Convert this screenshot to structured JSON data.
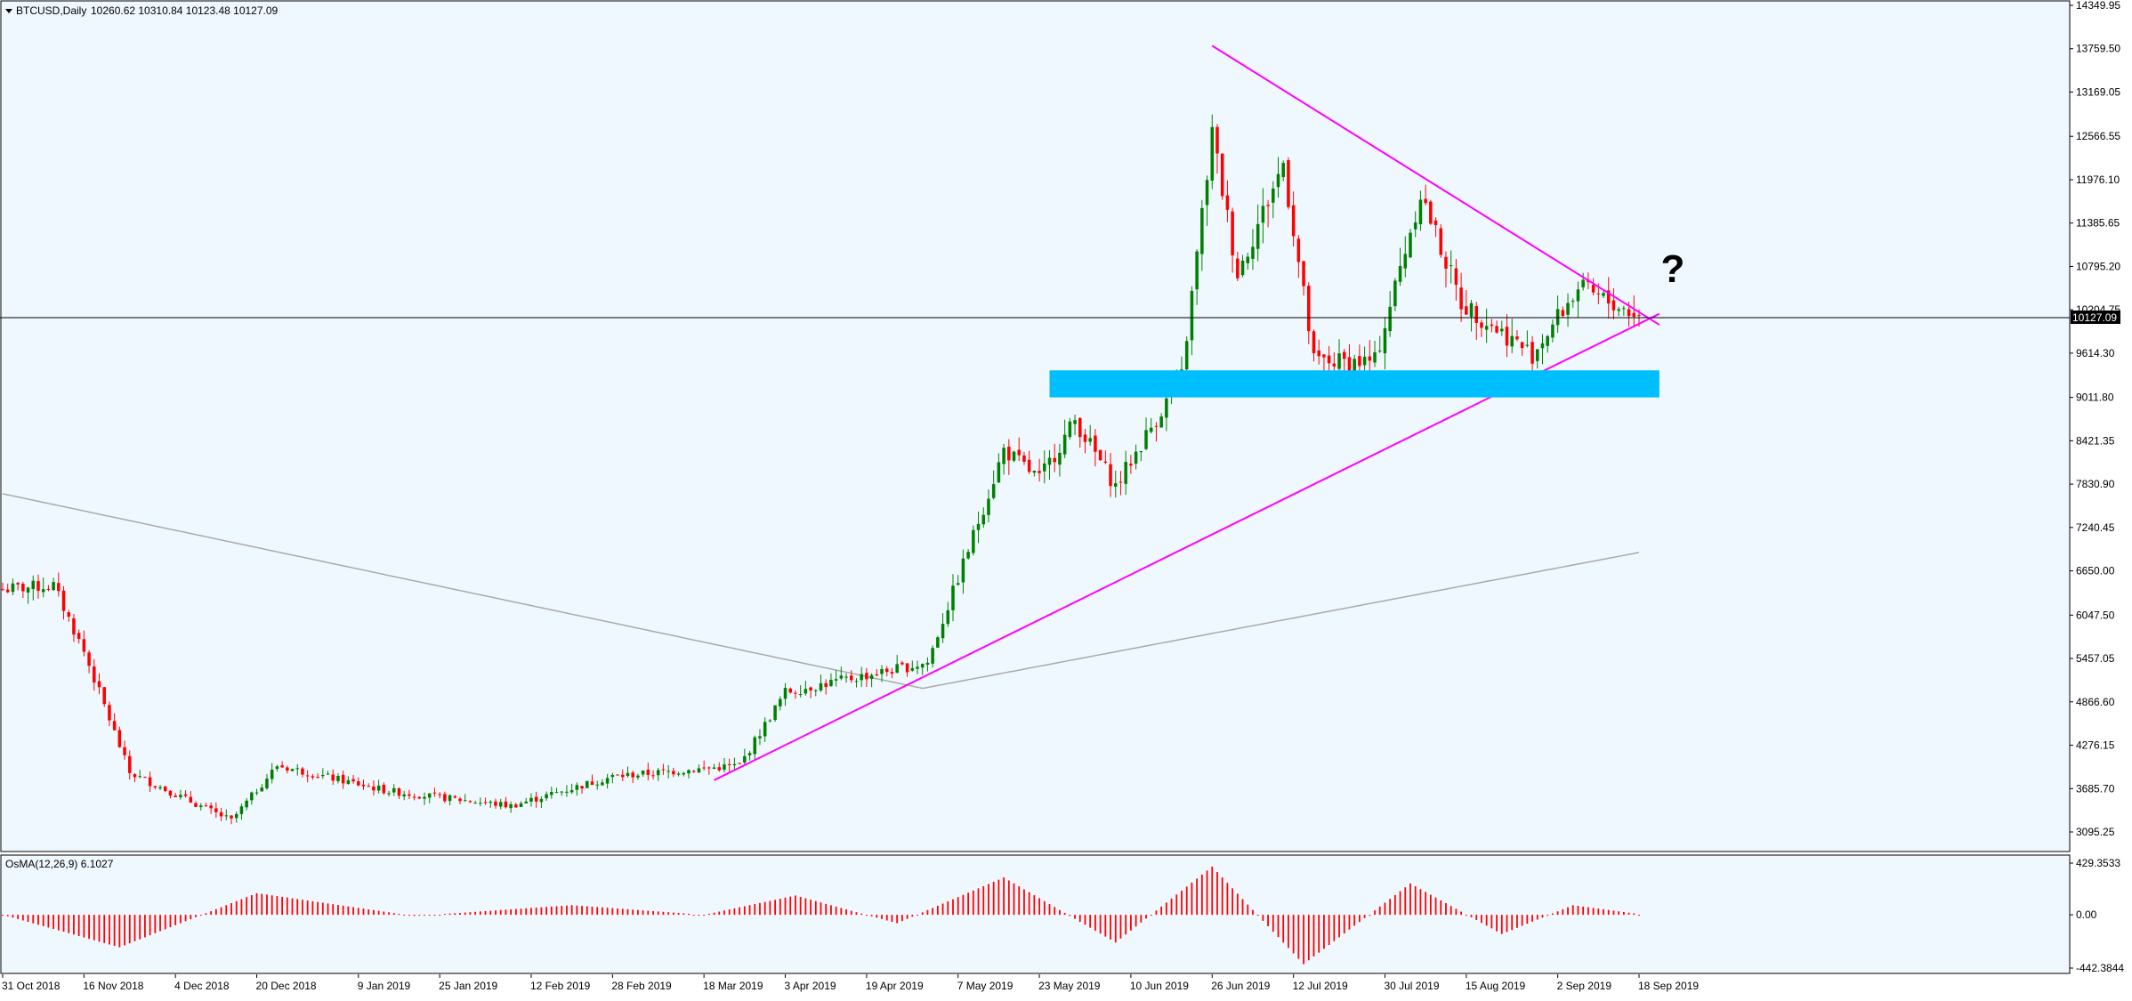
{
  "header": {
    "symbol_label": "BTCUSD,Daily",
    "ohlc": "10260.62 10310.84 10123.48 10127.09"
  },
  "price_axis": {
    "ticks": [
      "14349.95",
      "13759.50",
      "13169.05",
      "12566.55",
      "11976.10",
      "11385.65",
      "10795.20",
      "10204.75",
      "9614.30",
      "9011.80",
      "8421.35",
      "7830.90",
      "7240.45",
      "6650.00",
      "6047.50",
      "5457.05",
      "4866.60",
      "4276.15",
      "3685.70",
      "3095.25"
    ],
    "current_price_label": "10127.09"
  },
  "osma": {
    "label": "OsMA(12,26,9) 6.1027",
    "ticks": [
      "429.3533",
      "0.00",
      "-442.3844"
    ]
  },
  "time_axis": {
    "labels": [
      "31 Oct 2018",
      "16 Nov 2018",
      "4 Dec 2018",
      "20 Dec 2018",
      "9 Jan 2019",
      "25 Jan 2019",
      "12 Feb 2019",
      "28 Feb 2019",
      "18 Mar 2019",
      "3 Apr 2019",
      "19 Apr 2019",
      "7 May 2019",
      "23 May 2019",
      "10 Jun 2019",
      "26 Jun 2019",
      "12 Jul 2019",
      "30 Jul 2019",
      "15 Aug 2019",
      "2 Sep 2019",
      "18 Sep 2019"
    ]
  },
  "annotation": {
    "question_mark": "?"
  },
  "colors": {
    "background": "#F0F8FF",
    "bull": "#008000",
    "bear": "#FF0000",
    "ma": "#A9A9A9",
    "trendline": "#FF00FF",
    "zone": "#00BFFF",
    "osma": "#FF0000"
  },
  "chart_data": {
    "type": "candlestick",
    "symbol": "BTCUSD",
    "timeframe": "Daily",
    "x_range": [
      "31 Oct 2018",
      "18 Sep 2019"
    ],
    "ylim": [
      3095.25,
      14349.95
    ],
    "last_close": 10127.09,
    "key_points": [
      {
        "date": "31 Oct 2018",
        "price": 6400
      },
      {
        "date": "10 Nov 2018",
        "price": 6450
      },
      {
        "date": "16 Nov 2018",
        "price": 5550
      },
      {
        "date": "25 Nov 2018",
        "price": 3900
      },
      {
        "date": "15 Dec 2018",
        "price": 3250
      },
      {
        "date": "24 Dec 2018",
        "price": 4000
      },
      {
        "date": "15 Jan 2019",
        "price": 3650
      },
      {
        "date": "8 Feb 2019",
        "price": 3450
      },
      {
        "date": "28 Feb 2019",
        "price": 3850
      },
      {
        "date": "25 Mar 2019",
        "price": 4000
      },
      {
        "date": "3 Apr 2019",
        "price": 5000
      },
      {
        "date": "1 May 2019",
        "price": 5400
      },
      {
        "date": "14 May 2019",
        "price": 7900
      },
      {
        "date": "16 May 2019",
        "price": 8300
      },
      {
        "date": "23 May 2019",
        "price": 7900
      },
      {
        "date": "30 May 2019",
        "price": 8700
      },
      {
        "date": "7 Jun 2019",
        "price": 7800
      },
      {
        "date": "20 Jun 2019",
        "price": 9300
      },
      {
        "date": "26 Jun 2019",
        "price": 12600
      },
      {
        "date": "1 Jul 2019",
        "price": 10700
      },
      {
        "date": "10 Jul 2019",
        "price": 12200
      },
      {
        "date": "16 Jul 2019",
        "price": 9500
      },
      {
        "date": "28 Jul 2019",
        "price": 9500
      },
      {
        "date": "6 Aug 2019",
        "price": 11800
      },
      {
        "date": "14 Aug 2019",
        "price": 10300
      },
      {
        "date": "28 Aug 2019",
        "price": 9600
      },
      {
        "date": "6 Sep 2019",
        "price": 10500
      },
      {
        "date": "18 Sep 2019",
        "price": 10127
      }
    ],
    "overlays": [
      {
        "type": "moving_average",
        "points": [
          {
            "date": "31 Oct 2018",
            "price": 7700
          },
          {
            "date": "30 Apr 2019",
            "price": 5050
          },
          {
            "date": "18 Sep 2019",
            "price": 6900
          }
        ]
      },
      {
        "type": "trendline",
        "points": [
          {
            "date": "20 Mar 2019",
            "price": 3800
          },
          {
            "date": "22 Sep 2019",
            "price": 10150
          }
        ]
      },
      {
        "type": "trendline",
        "points": [
          {
            "date": "26 Jun 2019",
            "price": 13800
          },
          {
            "date": "22 Sep 2019",
            "price": 10000
          }
        ]
      },
      {
        "type": "zone",
        "from_date": "25 May 2019",
        "to_date": "22 Sep 2019",
        "price_low": 9011.8,
        "price_high": 9380
      }
    ],
    "osma_series": {
      "name": "OsMA(12,26,9)",
      "last_value": 6.1027,
      "ylim": [
        -442.3844,
        429.3533
      ],
      "key_points": [
        {
          "date": "31 Oct 2018",
          "value": 0
        },
        {
          "date": "23 Nov 2018",
          "value": -270
        },
        {
          "date": "20 Dec 2018",
          "value": 180
        },
        {
          "date": "20 Jan 2019",
          "value": -10
        },
        {
          "date": "20 Feb 2019",
          "value": 80
        },
        {
          "date": "18 Mar 2019",
          "value": 0
        },
        {
          "date": "5 Apr 2019",
          "value": 160
        },
        {
          "date": "25 Apr 2019",
          "value": -70
        },
        {
          "date": "16 May 2019",
          "value": 310
        },
        {
          "date": "7 Jun 2019",
          "value": -230
        },
        {
          "date": "26 Jun 2019",
          "value": 400
        },
        {
          "date": "14 Jul 2019",
          "value": -410
        },
        {
          "date": "4 Aug 2019",
          "value": 260
        },
        {
          "date": "22 Aug 2019",
          "value": -160
        },
        {
          "date": "5 Sep 2019",
          "value": 80
        },
        {
          "date": "18 Sep 2019",
          "value": 6.1027
        }
      ]
    }
  }
}
